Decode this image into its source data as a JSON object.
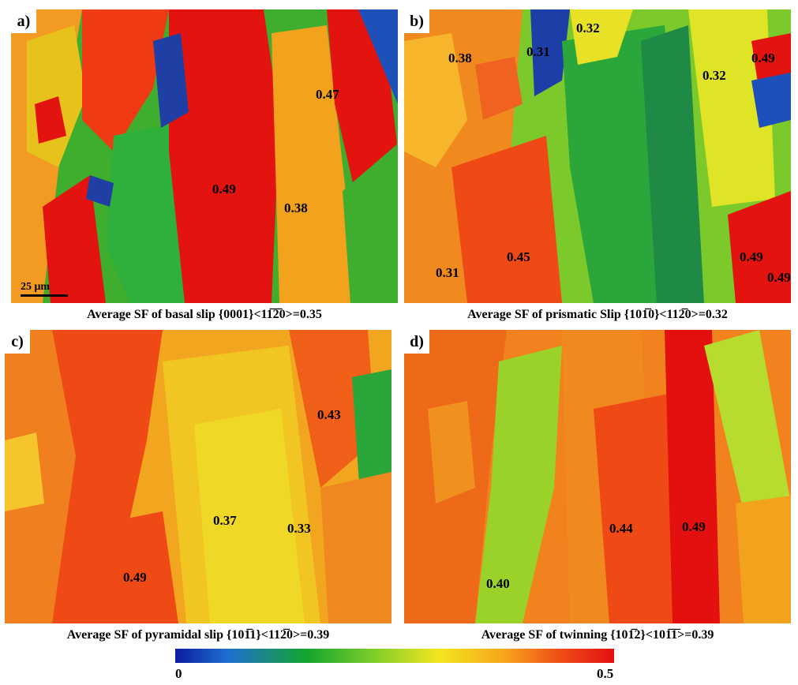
{
  "panels": [
    {
      "letter": "a)",
      "caption": "Average SF of basal slip {0001}<11̅2̅0>=0.35",
      "values": [
        "0.47",
        "0.49",
        "0.38"
      ],
      "scalebar": "25 μm"
    },
    {
      "letter": "b)",
      "caption": "Average SF of prismatic Slip {101̅0}<112̅0>=0.32",
      "values": [
        "0.32",
        "0.38",
        "0.31",
        "0.49",
        "0.32",
        "0.45",
        "0.31",
        "0.49",
        "0.49"
      ]
    },
    {
      "letter": "c)",
      "caption": "Average SF of pyramidal slip {101̅1}<112̅0>=0.39",
      "values": [
        "0.43",
        "0.37",
        "0.33",
        "0.49"
      ]
    },
    {
      "letter": "d)",
      "caption": "Average SF of twinning {101̅2}<101̅1̅>=0.39",
      "values": [
        "0.44",
        "0.49",
        "0.40"
      ]
    }
  ],
  "colorbar": {
    "min": "0",
    "max": "0.5",
    "colors": [
      "#0a1ca0",
      "#1f6fd0",
      "#14a52f",
      "#7ccd2a",
      "#f3e620",
      "#f7a51c",
      "#ef4b16",
      "#e3100f"
    ]
  }
}
